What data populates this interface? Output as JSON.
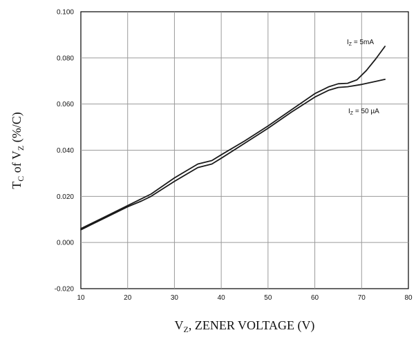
{
  "chart_data": {
    "type": "line",
    "title": "",
    "xlabel": {
      "main": "V",
      "sub": "Z",
      "rest": ",  ZENER VOLTAGE (V)"
    },
    "ylabel": {
      "main": "T",
      "sub1": "C",
      "mid": " of V",
      "sub2": "Z",
      "rest": " (%/C)"
    },
    "xlim": [
      10,
      80
    ],
    "ylim": [
      -0.02,
      0.1
    ],
    "xticks": [
      "10",
      "20",
      "30",
      "40",
      "50",
      "60",
      "70",
      "80"
    ],
    "yticks": [
      "-0.020",
      "0.000",
      "0.020",
      "0.040",
      "0.060",
      "0.080",
      "0.100"
    ],
    "grid": true,
    "series": [
      {
        "name": "I_Z = 5mA",
        "label_main": "I",
        "label_sub": "Z",
        "label_rest": " = 5mA",
        "x": [
          10,
          12,
          15,
          20,
          23,
          25,
          30,
          35,
          38,
          40,
          45,
          50,
          55,
          60,
          63,
          65,
          67,
          69,
          71,
          73,
          75
        ],
        "y": [
          0.006,
          0.008,
          0.011,
          0.016,
          0.019,
          0.021,
          0.028,
          0.034,
          0.0355,
          0.038,
          0.044,
          0.0505,
          0.0575,
          0.0645,
          0.0675,
          0.0688,
          0.069,
          0.0705,
          0.0745,
          0.0795,
          0.085
        ]
      },
      {
        "name": "I_Z = 50µA",
        "label_main": "I",
        "label_sub": "Z",
        "label_rest": " = 50 µA",
        "x": [
          10,
          12,
          15,
          20,
          23,
          25,
          30,
          35,
          38,
          40,
          45,
          50,
          55,
          60,
          63,
          65,
          67,
          70,
          73,
          75
        ],
        "y": [
          0.0055,
          0.0075,
          0.0105,
          0.0155,
          0.018,
          0.02,
          0.0265,
          0.0325,
          0.034,
          0.0365,
          0.043,
          0.0495,
          0.0565,
          0.063,
          0.066,
          0.0672,
          0.0675,
          0.0685,
          0.0698,
          0.0707
        ]
      }
    ]
  }
}
